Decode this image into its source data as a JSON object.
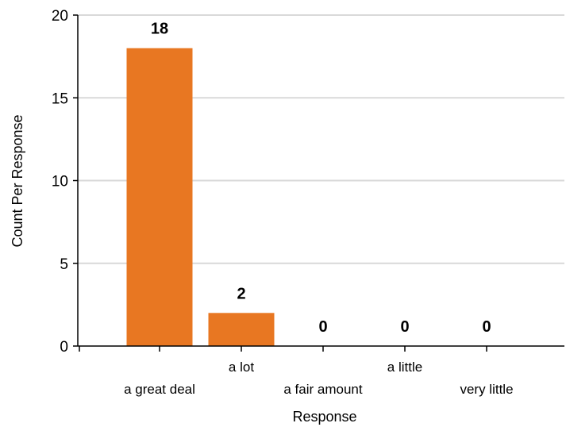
{
  "chart_data": {
    "type": "bar",
    "categories": [
      "a great deal",
      "a lot",
      "a fair amount",
      "a little",
      "very little"
    ],
    "values": [
      18,
      2,
      0,
      0,
      0
    ],
    "data_labels": [
      "18",
      "2",
      "0",
      "0",
      "0"
    ],
    "xlabel": "Response",
    "ylabel": "Count Per Response",
    "ylim": [
      0,
      20
    ],
    "yticks": [
      0,
      5,
      10,
      15,
      20
    ],
    "grid": true,
    "bar_color": "#e87722",
    "grid_color": "#d9d9d9"
  }
}
